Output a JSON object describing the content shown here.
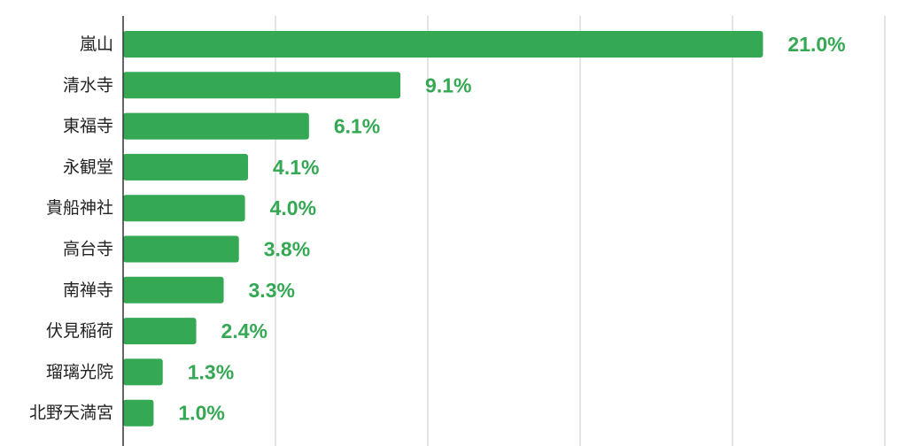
{
  "chart_data": {
    "type": "bar",
    "orientation": "horizontal",
    "categories": [
      "嵐山",
      "清水寺",
      "東福寺",
      "永観堂",
      "貴船神社",
      "高台寺",
      "南禅寺",
      "伏見稲荷",
      "瑠璃光院",
      "北野天満宮"
    ],
    "values": [
      21.0,
      9.1,
      6.1,
      4.1,
      4.0,
      3.8,
      3.3,
      2.4,
      1.3,
      1.0
    ],
    "value_labels": [
      "21.0%",
      "9.1%",
      "6.1%",
      "4.1%",
      "4.0%",
      "3.8%",
      "3.3%",
      "2.4%",
      "1.3%",
      "1.0%"
    ],
    "xlim": [
      0,
      25
    ],
    "grid": true,
    "bar_color": "#34a853",
    "label_color": "#34a853"
  }
}
